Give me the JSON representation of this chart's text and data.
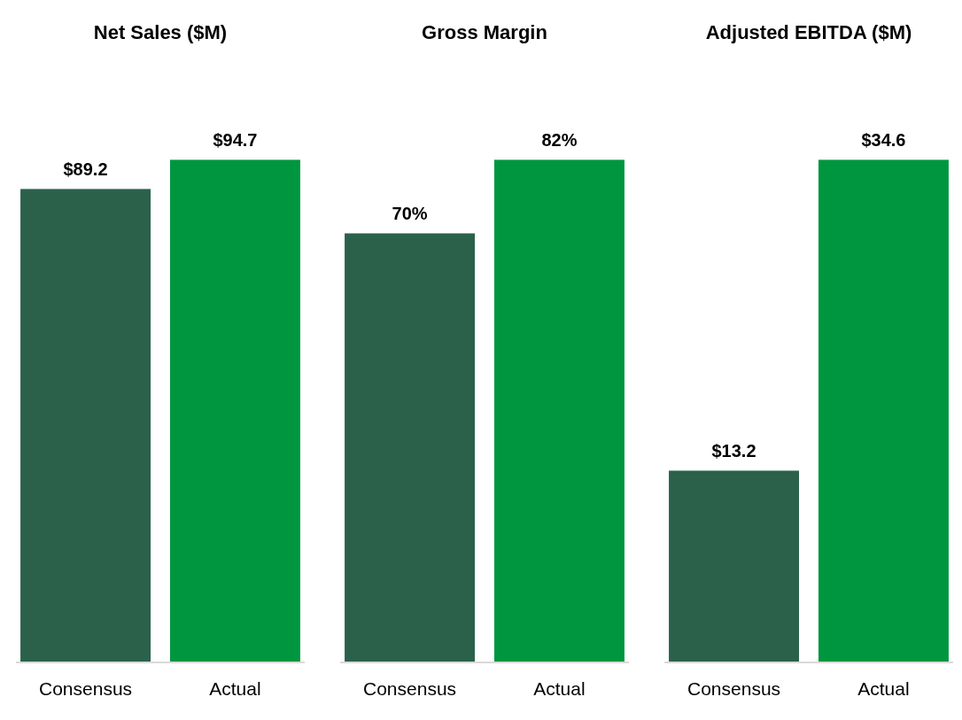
{
  "chart_data": [
    {
      "type": "bar",
      "title": "Net Sales ($M)",
      "categories": [
        "Consensus",
        "Actual"
      ],
      "values": [
        89.2,
        94.7
      ],
      "colors": [
        "#2b614b",
        "#00963f"
      ],
      "value_labels": [
        "$89.2",
        "$94.7"
      ]
    },
    {
      "type": "bar",
      "title": "Gross Margin",
      "categories": [
        "Consensus",
        "Actual"
      ],
      "values": [
        70,
        82
      ],
      "colors": [
        "#2b614b",
        "#00963f"
      ],
      "value_labels": [
        "70%",
        "82%"
      ]
    },
    {
      "type": "bar",
      "title": "Adjusted EBITDA ($M)",
      "categories": [
        "Consensus",
        "Actual"
      ],
      "values": [
        13.2,
        34.6
      ],
      "colors": [
        "#2b614b",
        "#00963f"
      ],
      "value_labels": [
        "$13.2",
        "$34.6"
      ]
    }
  ]
}
